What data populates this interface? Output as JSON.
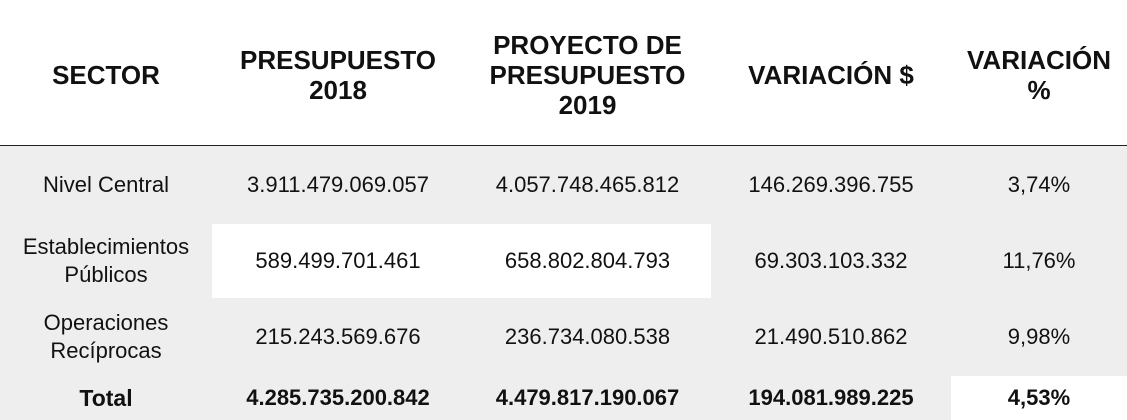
{
  "headers": {
    "sector": "SECTOR",
    "presupuesto_2018": [
      "PRESUPUESTO",
      "2018"
    ],
    "proyecto_2019": [
      "PROYECTO DE",
      "PRESUPUESTO",
      "2019"
    ],
    "variacion_pesos": "VARIACIÓN $",
    "variacion_pct": [
      "VARIACIÓN",
      "%"
    ]
  },
  "rows": [
    {
      "sector": [
        "Nivel Central"
      ],
      "presupuesto_2018": "3.911.479.069.057",
      "proyecto_2019": "4.057.748.465.812",
      "variacion_pesos": "146.269.396.755",
      "variacion_pct": "3,74%"
    },
    {
      "sector": [
        "Establecimientos",
        "Públicos"
      ],
      "presupuesto_2018": "589.499.701.461",
      "proyecto_2019": "658.802.804.793",
      "variacion_pesos": "69.303.103.332",
      "variacion_pct": "11,76%"
    },
    {
      "sector": [
        "Operaciones",
        "Recíprocas"
      ],
      "presupuesto_2018": "215.243.569.676",
      "proyecto_2019": "236.734.080.538",
      "variacion_pesos": "21.490.510.862",
      "variacion_pct": "9,98%"
    }
  ],
  "total": {
    "sector": "Total",
    "presupuesto_2018": "4.285.735.200.842",
    "proyecto_2019": "4.479.817.190.067",
    "variacion_pesos": "194.081.989.225",
    "variacion_pct": "4,53%"
  },
  "colors": {
    "row_shade": "#eeeeee",
    "text": "#111111",
    "header_rule": "#222222"
  }
}
